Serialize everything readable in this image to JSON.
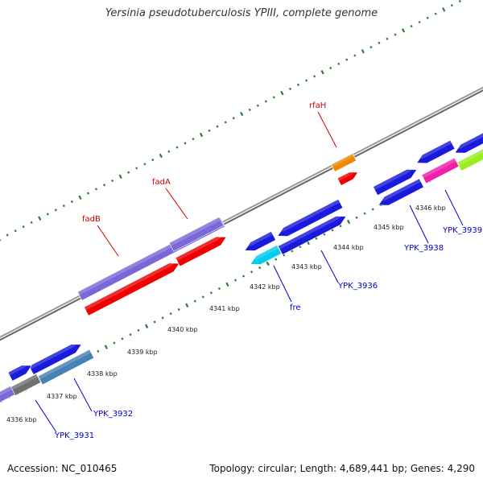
{
  "title": "Yersinia pseudotuberculosis YPIII, complete genome",
  "footer": {
    "accession": "Accession: NC_010465",
    "topology": "Topology: circular; Length: 4,689,441 bp; Genes: 4,290"
  },
  "ticks": [
    "4336 kbp",
    "4337 kbp",
    "4338 kbp",
    "4339 kbp",
    "4340 kbp",
    "4341 kbp",
    "4342 kbp",
    "4343 kbp",
    "4344 kbp",
    "4345 kbp",
    "4346 kbp"
  ],
  "genes": [
    {
      "label": "fadB",
      "color": "#cc0000"
    },
    {
      "label": "fadA",
      "color": "#cc0000"
    },
    {
      "label": "rfaH",
      "color": "#cc0000"
    },
    {
      "label": "fre",
      "color": "#0000cc"
    },
    {
      "label": "YPK_3931",
      "color": "#0000cc"
    },
    {
      "label": "YPK_3932",
      "color": "#0000cc"
    },
    {
      "label": "YPK_3936",
      "color": "#0000cc"
    },
    {
      "label": "YPK_3938",
      "color": "#0000cc"
    },
    {
      "label": "YPK_3939",
      "color": "#0000cc"
    }
  ],
  "colors": {
    "backbone": "#888888",
    "dots": "#2e7d2e",
    "blue": "#1a1adc",
    "red": "#ee0000",
    "purple": "#7b68d8",
    "orange": "#ee8800",
    "cyan": "#00ccee",
    "steelblue": "#4682b4",
    "gray": "#707070",
    "magenta": "#ee22aa",
    "lime": "#99ee22"
  }
}
